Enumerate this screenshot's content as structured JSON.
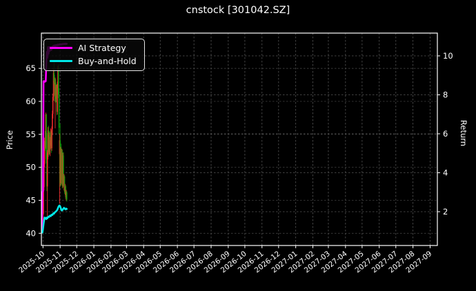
{
  "chart_data": {
    "type": "candlestick+line",
    "title": "cnstock [301042.SZ]",
    "legend": [
      {
        "name": "AI Strategy",
        "color": "#ff00ff"
      },
      {
        "name": "Buy-and-Hold",
        "color": "#00e8e8"
      }
    ],
    "left_axis": {
      "label": "Price",
      "ticks": [
        40,
        45,
        50,
        55,
        60,
        65
      ],
      "range": [
        38.1,
        70.3
      ]
    },
    "right_axis": {
      "label": "Return",
      "ticks": [
        2,
        4,
        6,
        8,
        10
      ],
      "range": [
        0.27,
        11.17
      ]
    },
    "x_axis": {
      "tick_labels": [
        "2025-10",
        "2025-11",
        "2025-12",
        "2026-01",
        "2026-02",
        "2026-03",
        "2026-04",
        "2026-05",
        "2026-06",
        "2026-07",
        "2026-08",
        "2026-09",
        "2026-10",
        "2026-11",
        "2026-12",
        "2027-01",
        "2027-02",
        "2027-03",
        "2027-04",
        "2027-05",
        "2027-06",
        "2027-07",
        "2027-08",
        "2027-09"
      ],
      "grid": true
    },
    "colors": {
      "background": "#000000",
      "text": "#ffffff",
      "grid": "#555555",
      "border": "#ffffff",
      "candle_up": "#ff2e2e",
      "candle_down": "#0ca30a"
    },
    "dates": [
      "2025-09-29",
      "2025-09-30",
      "2025-10-01",
      "2025-10-02",
      "2025-10-03",
      "2025-10-04",
      "2025-10-05",
      "2025-10-06",
      "2025-10-07",
      "2025-10-08",
      "2025-10-09",
      "2025-10-10",
      "2025-10-11",
      "2025-10-12",
      "2025-10-13",
      "2025-10-14",
      "2025-10-15",
      "2025-10-16",
      "2025-10-17",
      "2025-10-18",
      "2025-10-19",
      "2025-10-20",
      "2025-10-21",
      "2025-10-22",
      "2025-10-23",
      "2025-10-24",
      "2025-10-25",
      "2025-10-26",
      "2025-10-27",
      "2025-10-28",
      "2025-10-29",
      "2025-10-30",
      "2025-10-31",
      "2025-11-01",
      "2025-11-02",
      "2025-11-03",
      "2025-11-04",
      "2025-11-05",
      "2025-11-06",
      "2025-11-07",
      "2025-11-08",
      "2025-11-09",
      "2025-11-10",
      "2025-11-11",
      "2025-11-12",
      "2025-11-13"
    ],
    "candles_ohlc": [
      [
        40.6,
        41.0,
        40.0,
        40.3
      ],
      [
        40.3,
        42.0,
        40.1,
        41.8
      ],
      [
        41.8,
        43.4,
        41.5,
        43.0
      ],
      [
        43.0,
        47.5,
        42.8,
        47.0
      ],
      [
        47.0,
        51.0,
        46.5,
        50.5
      ],
      [
        50.5,
        54.5,
        50.0,
        54.0
      ],
      [
        54.0,
        55.5,
        52.5,
        53.0
      ],
      [
        53.0,
        58.3,
        52.8,
        58.0
      ],
      [
        58.0,
        58.1,
        50.6,
        51.2
      ],
      [
        51.2,
        55.2,
        46.4,
        47.1
      ],
      [
        47.1,
        52.6,
        42.6,
        52.2
      ],
      [
        52.2,
        56.1,
        51.2,
        55.6
      ],
      [
        55.6,
        56.3,
        51.6,
        52.3
      ],
      [
        52.3,
        55.3,
        51.9,
        54.9
      ],
      [
        54.9,
        55.5,
        52.0,
        52.7
      ],
      [
        52.7,
        54.6,
        51.7,
        54.1
      ],
      [
        54.1,
        55.9,
        53.3,
        55.3
      ],
      [
        55.3,
        55.6,
        52.2,
        52.9
      ],
      [
        52.9,
        56.2,
        52.5,
        55.8
      ],
      [
        55.8,
        58.6,
        54.9,
        58.1
      ],
      [
        58.1,
        61.2,
        57.4,
        60.7
      ],
      [
        60.7,
        64.9,
        60.1,
        64.3
      ],
      [
        64.3,
        65.9,
        62.6,
        63.1
      ],
      [
        63.1,
        64.0,
        60.0,
        60.9
      ],
      [
        60.9,
        63.6,
        55.9,
        62.8
      ],
      [
        62.8,
        63.4,
        59.8,
        60.4
      ],
      [
        60.4,
        62.5,
        59.9,
        62.1
      ],
      [
        62.1,
        62.6,
        57.9,
        58.4
      ],
      [
        58.4,
        63.0,
        58.0,
        62.6
      ],
      [
        62.6,
        65.4,
        62.0,
        65.1
      ],
      [
        65.1,
        65.6,
        60.5,
        61.0
      ],
      [
        61.0,
        62.0,
        55.0,
        56.0
      ],
      [
        52.0,
        55.1,
        44.5,
        54.1
      ],
      [
        54.1,
        56.6,
        47.0,
        47.6
      ],
      [
        47.6,
        53.1,
        47.2,
        52.9
      ],
      [
        52.9,
        53.6,
        47.3,
        48.1
      ],
      [
        48.1,
        52.8,
        47.5,
        52.3
      ],
      [
        52.3,
        52.7,
        46.8,
        47.2
      ],
      [
        47.2,
        52.2,
        46.9,
        51.8
      ],
      [
        51.8,
        52.3,
        47.1,
        47.5
      ],
      [
        47.5,
        49.0,
        46.5,
        48.6
      ],
      [
        48.6,
        48.8,
        46.0,
        46.3
      ],
      [
        46.3,
        47.5,
        45.8,
        47.1
      ],
      [
        47.1,
        47.3,
        45.2,
        45.5
      ],
      [
        45.5,
        46.6,
        45.0,
        46.2
      ],
      [
        46.2,
        46.4,
        44.8,
        45.1
      ]
    ],
    "series": [
      {
        "name": "AI Strategy",
        "axis": "return",
        "color": "#ff00ff",
        "values": [
          1.0,
          3.0,
          3.05,
          8.7,
          8.65,
          8.7,
          8.68,
          8.7,
          9.6,
          10.2,
          9.9,
          10.45,
          10.1,
          10.45,
          10.25,
          10.45,
          10.4,
          10.3,
          10.42,
          10.48,
          10.45,
          10.52,
          10.48,
          10.54,
          10.5,
          10.55,
          10.52,
          10.56,
          10.53,
          10.58,
          10.55,
          10.58,
          10.56,
          10.6,
          10.57,
          10.6,
          10.58,
          10.61,
          10.59,
          10.62,
          10.6,
          10.62,
          10.6,
          10.63,
          10.61,
          10.62
        ]
      },
      {
        "name": "Buy-and-Hold",
        "axis": "return",
        "color": "#00e8e8",
        "values": [
          1.0,
          0.93,
          1.1,
          1.35,
          1.55,
          1.7,
          1.65,
          1.68,
          1.62,
          1.7,
          1.66,
          1.72,
          1.75,
          1.73,
          1.78,
          1.8,
          1.77,
          1.82,
          1.85,
          1.83,
          1.88,
          1.92,
          1.9,
          1.95,
          1.98,
          2.0,
          2.03,
          2.06,
          2.1,
          2.18,
          2.25,
          2.3,
          2.32,
          2.28,
          2.2,
          2.12,
          2.06,
          2.08,
          2.12,
          2.16,
          2.2,
          2.17,
          2.14,
          2.12,
          2.16,
          2.14
        ]
      }
    ]
  }
}
